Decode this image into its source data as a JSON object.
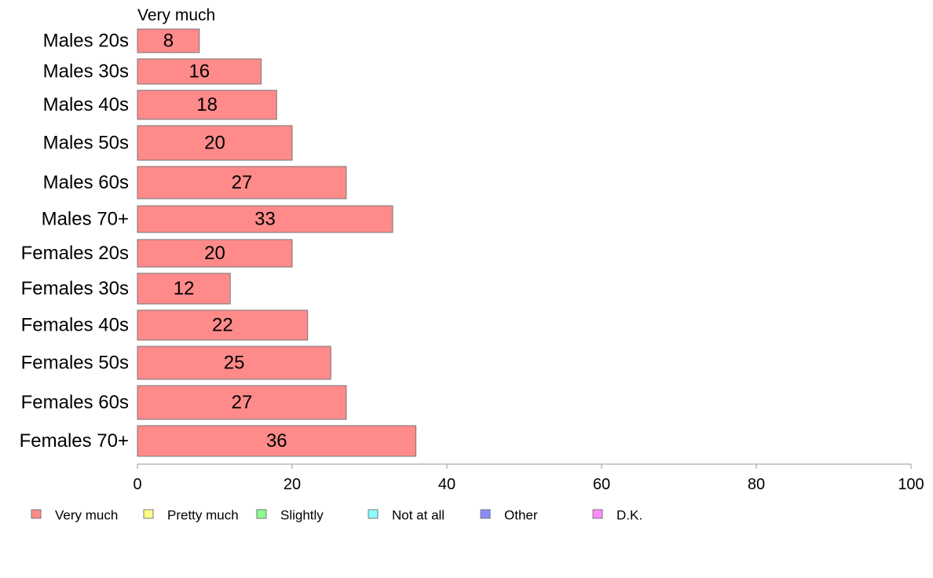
{
  "chart_data": {
    "type": "bar",
    "orientation": "horizontal",
    "series_header": "Very much",
    "categories": [
      "Males 20s",
      "Males 30s",
      "Males 40s",
      "Males 50s",
      "Males 60s",
      "Males 70+",
      "Females 20s",
      "Females 30s",
      "Females 40s",
      "Females 50s",
      "Females 60s",
      "Females 70+"
    ],
    "series": [
      {
        "name": "Very much",
        "color": "#ff8a8a",
        "values": [
          8,
          16,
          18,
          20,
          27,
          33,
          20,
          12,
          22,
          25,
          27,
          36
        ],
        "value_labels": [
          "8",
          "16",
          "18",
          "20",
          "27",
          "33",
          "20",
          "12",
          "22",
          "25",
          "27",
          "36"
        ]
      }
    ],
    "xlim": [
      0,
      100
    ],
    "xticks": [
      0,
      20,
      40,
      60,
      80,
      100
    ],
    "grid": false,
    "legend": {
      "position": "bottom",
      "items": [
        {
          "label": "Very much",
          "color": "#ff8a8a"
        },
        {
          "label": "Pretty much",
          "color": "#ffff8a"
        },
        {
          "label": "Slightly",
          "color": "#8aff8a"
        },
        {
          "label": "Not at all",
          "color": "#8affff"
        },
        {
          "label": "Other",
          "color": "#8a8aff"
        },
        {
          "label": "D.K.",
          "color": "#ff8aff"
        }
      ]
    }
  }
}
